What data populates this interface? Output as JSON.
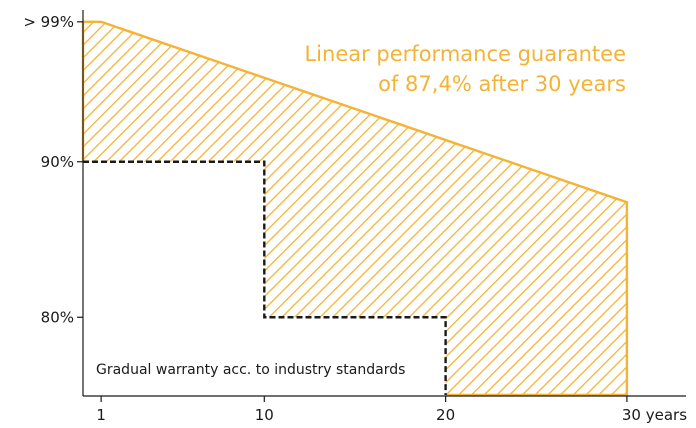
{
  "chart_data": {
    "type": "area",
    "colors": {
      "guarantee": "#F5B335",
      "axis": "#1a1a1a",
      "industry_line": "#1a1a1a"
    },
    "y_ticks": [
      {
        "value": 99,
        "label": "> 99%"
      },
      {
        "value": 90,
        "label": "90%"
      },
      {
        "value": 80,
        "label": "80%"
      }
    ],
    "x_ticks": [
      {
        "value": 1,
        "label": "1"
      },
      {
        "value": 10,
        "label": "10"
      },
      {
        "value": 20,
        "label": "20"
      },
      {
        "value": 30,
        "label": "30 years"
      }
    ],
    "series": [
      {
        "key": "linear_guarantee",
        "x": [
          0,
          1,
          30,
          30
        ],
        "y": [
          99,
          99,
          87.4,
          75
        ]
      },
      {
        "key": "industry_standard",
        "x": [
          0,
          10,
          10,
          20,
          20
        ],
        "y": [
          90,
          90,
          80,
          80,
          75
        ]
      }
    ],
    "annotation": {
      "line1": "Linear performance guarantee",
      "line2": "of 87,4% after 30 years"
    },
    "box_label": "Gradual warranty acc. to industry standards"
  }
}
